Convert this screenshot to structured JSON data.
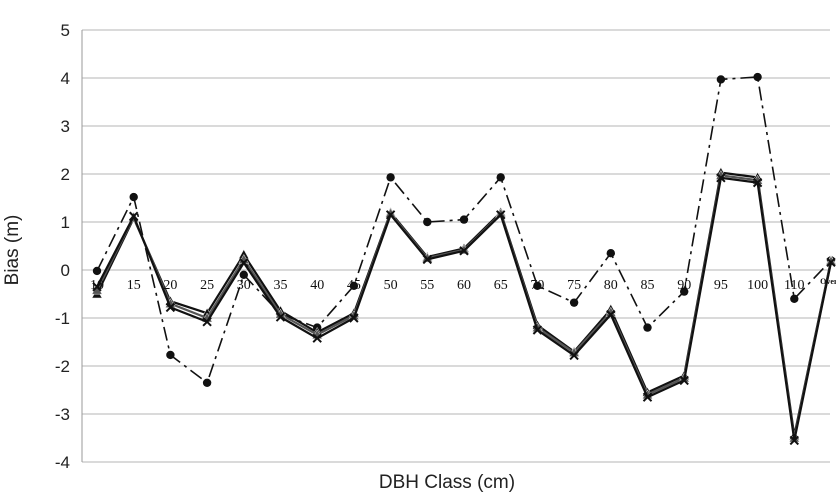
{
  "chart_data": {
    "type": "line",
    "title": "",
    "xlabel": "DBH Class (cm)",
    "ylabel": "Bias (m)",
    "ylim": [
      -4,
      5
    ],
    "yticks": [
      "-4",
      "-3",
      "-2",
      "-1",
      "0",
      "1",
      "2",
      "3",
      "4",
      "5"
    ],
    "grid": "horizontal",
    "categories": [
      "10",
      "15",
      "20",
      "25",
      "30",
      "35",
      "40",
      "45",
      "50",
      "55",
      "60",
      "65",
      "70",
      "75",
      "80",
      "85",
      "90",
      "95",
      "100",
      "110",
      "Overall"
    ],
    "series": [
      {
        "values": [
          -0.02,
          1.52,
          -1.77,
          -2.35,
          -0.1,
          -0.92,
          -1.2,
          -0.33,
          1.93,
          1.0,
          1.05,
          1.93,
          -0.33,
          -0.68,
          0.35,
          -1.2,
          -0.45,
          3.97,
          4.02,
          -0.6,
          0.2
        ],
        "color": "#111111",
        "line_style": "dash-dot",
        "marker": "circle"
      },
      {
        "values": [
          -0.5,
          1.08,
          -0.65,
          -0.9,
          0.32,
          -0.85,
          -1.3,
          -0.9,
          1.2,
          0.27,
          0.45,
          1.2,
          -1.15,
          -1.7,
          -0.82,
          -2.55,
          -2.2,
          2.03,
          1.93,
          -3.45,
          0.2
        ],
        "color": "#111111",
        "line_style": "solid",
        "marker": "triangle"
      },
      {
        "values": [
          -0.42,
          1.1,
          -0.7,
          -1.0,
          0.22,
          -0.92,
          -1.35,
          -0.95,
          1.18,
          0.25,
          0.42,
          1.17,
          -1.2,
          -1.72,
          -0.88,
          -2.6,
          -2.25,
          1.97,
          1.87,
          -3.5,
          0.18
        ],
        "color": "#555555",
        "line_style": "solid",
        "marker": "triangle"
      },
      {
        "values": [
          -0.35,
          1.12,
          -0.78,
          -1.08,
          0.15,
          -0.98,
          -1.42,
          -1.0,
          1.15,
          0.22,
          0.4,
          1.15,
          -1.25,
          -1.78,
          -0.93,
          -2.65,
          -2.3,
          1.92,
          1.82,
          -3.55,
          0.16
        ],
        "color": "#111111",
        "line_style": "solid",
        "marker": "x"
      }
    ]
  }
}
